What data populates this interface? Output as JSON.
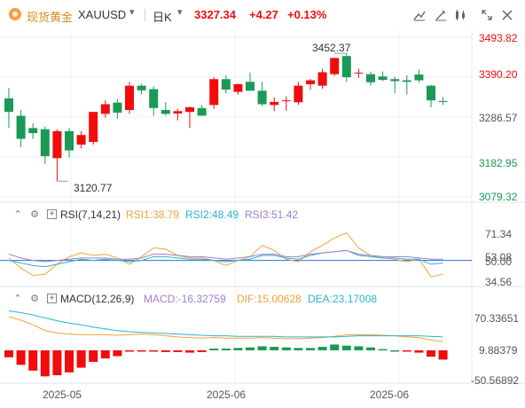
{
  "header": {
    "title": "现货黄金",
    "symbol": "XAUUSD",
    "period": "日K",
    "price": "3327.34",
    "change": "+4.27",
    "change_pct": "+0.13%",
    "icons": [
      "compare-icon",
      "drawing-icon",
      "candle-type-icon",
      "fullscreen-icon",
      "close-icon"
    ]
  },
  "colors": {
    "up": "#f20c0c",
    "down": "#1a9a56",
    "dif": "#f2a23a",
    "dea": "#2bb3c9",
    "rsi1": "#f2a23a",
    "rsi2": "#2bb3c9",
    "rsi3": "#9c7fcf"
  },
  "main_axis": [
    "3493.82",
    "3390.20",
    "3286.57",
    "3182.95",
    "3079.32"
  ],
  "annotations": {
    "high": "3452.37",
    "low": "3120.77"
  },
  "rsi": {
    "title": "RSI(7,14,21)",
    "rsi1": "RSI1:38.79",
    "rsi2": "RSI2:48.49",
    "rsi3": "RSI3:51.42",
    "axis": [
      "71.34",
      "53.08",
      "50.00",
      "34.56"
    ]
  },
  "macd": {
    "title": "MACD(12,26,9)",
    "macd": "MACD:-16.32759",
    "dif": "DIF:15.00628",
    "dea": "DEA:23.17008",
    "axis": [
      "70.33651",
      "9.88379",
      "-50.56892"
    ]
  },
  "x_axis": [
    "2025-05",
    "2025-06",
    "2025-06"
  ],
  "chart_data": [
    {
      "type": "candlestick",
      "title": "",
      "ylim": [
        3079.32,
        3493.82
      ],
      "candles": [
        {
          "o": 3335,
          "h": 3362,
          "l": 3258,
          "c": 3300
        },
        {
          "o": 3290,
          "h": 3305,
          "l": 3208,
          "c": 3230
        },
        {
          "o": 3258,
          "h": 3270,
          "l": 3230,
          "c": 3245
        },
        {
          "o": 3255,
          "h": 3262,
          "l": 3165,
          "c": 3185
        },
        {
          "o": 3180,
          "h": 3255,
          "l": 3120,
          "c": 3250
        },
        {
          "o": 3250,
          "h": 3258,
          "l": 3182,
          "c": 3200
        },
        {
          "o": 3215,
          "h": 3250,
          "l": 3205,
          "c": 3240
        },
        {
          "o": 3222,
          "h": 3300,
          "l": 3215,
          "c": 3300
        },
        {
          "o": 3295,
          "h": 3330,
          "l": 3285,
          "c": 3320
        },
        {
          "o": 3324,
          "h": 3333,
          "l": 3282,
          "c": 3298
        },
        {
          "o": 3305,
          "h": 3378,
          "l": 3295,
          "c": 3368
        },
        {
          "o": 3368,
          "h": 3373,
          "l": 3345,
          "c": 3356
        },
        {
          "o": 3359,
          "h": 3366,
          "l": 3290,
          "c": 3310
        },
        {
          "o": 3305,
          "h": 3325,
          "l": 3290,
          "c": 3295
        },
        {
          "o": 3296,
          "h": 3308,
          "l": 3278,
          "c": 3302
        },
        {
          "o": 3300,
          "h": 3314,
          "l": 3258,
          "c": 3312
        },
        {
          "o": 3310,
          "h": 3318,
          "l": 3290,
          "c": 3290
        },
        {
          "o": 3318,
          "h": 3390,
          "l": 3308,
          "c": 3385
        },
        {
          "o": 3385,
          "h": 3395,
          "l": 3348,
          "c": 3358
        },
        {
          "o": 3352,
          "h": 3374,
          "l": 3345,
          "c": 3372
        },
        {
          "o": 3378,
          "h": 3402,
          "l": 3355,
          "c": 3355
        },
        {
          "o": 3355,
          "h": 3378,
          "l": 3315,
          "c": 3320
        },
        {
          "o": 3318,
          "h": 3338,
          "l": 3302,
          "c": 3326
        },
        {
          "o": 3330,
          "h": 3340,
          "l": 3303,
          "c": 3330
        },
        {
          "o": 3325,
          "h": 3378,
          "l": 3318,
          "c": 3368
        },
        {
          "o": 3372,
          "h": 3386,
          "l": 3358,
          "c": 3382
        },
        {
          "o": 3368,
          "h": 3412,
          "l": 3360,
          "c": 3403
        },
        {
          "o": 3398,
          "h": 3441,
          "l": 3393,
          "c": 3440
        },
        {
          "o": 3445,
          "h": 3452,
          "l": 3378,
          "c": 3390
        },
        {
          "o": 3400,
          "h": 3412,
          "l": 3388,
          "c": 3402
        },
        {
          "o": 3398,
          "h": 3405,
          "l": 3368,
          "c": 3377
        },
        {
          "o": 3392,
          "h": 3405,
          "l": 3380,
          "c": 3383
        },
        {
          "o": 3385,
          "h": 3392,
          "l": 3348,
          "c": 3380
        },
        {
          "o": 3382,
          "h": 3395,
          "l": 3345,
          "c": 3378
        },
        {
          "o": 3397,
          "h": 3410,
          "l": 3376,
          "c": 3382
        },
        {
          "o": 3368,
          "h": 3370,
          "l": 3312,
          "c": 3330
        },
        {
          "o": 3328,
          "h": 3338,
          "l": 3318,
          "c": 3327
        }
      ]
    },
    {
      "type": "line",
      "title": "RSI(7,14,21)",
      "ylim": [
        30,
        78
      ],
      "series": [
        {
          "name": "RSI1",
          "values": [
            52,
            44,
            38,
            39,
            47,
            53,
            56,
            54,
            55,
            52,
            47,
            53,
            60,
            59,
            54,
            52,
            52,
            50,
            46,
            50,
            53,
            62,
            58,
            51,
            49,
            57,
            62,
            68,
            72,
            60,
            54,
            52,
            51,
            49,
            51,
            37,
            39
          ]
        },
        {
          "name": "RSI2",
          "values": [
            50,
            48,
            46,
            45,
            47,
            49,
            51,
            50,
            51,
            50,
            49,
            50,
            53,
            53,
            52,
            51,
            51,
            50,
            49,
            50,
            51,
            54,
            54,
            52,
            51,
            54,
            56,
            57,
            58,
            54,
            53,
            52,
            52,
            51,
            51,
            47,
            48
          ]
        },
        {
          "name": "RSI3",
          "values": [
            55,
            52,
            50,
            49,
            50,
            51,
            52,
            52,
            52,
            51,
            51,
            52,
            55,
            55,
            54,
            53,
            53,
            52,
            51,
            52,
            53,
            55,
            55,
            53,
            53,
            55,
            56,
            57,
            58,
            55,
            54,
            53,
            53,
            53,
            52,
            51,
            51
          ]
        }
      ]
    },
    {
      "type": "bar+line",
      "title": "MACD(12,26,9)",
      "ylim": [
        -50.56892,
        70.33651
      ],
      "series": [
        {
          "name": "MACD",
          "values": [
            -12,
            -25,
            -35,
            -45,
            -43,
            -38,
            -30,
            -20,
            -14,
            -10,
            -2,
            -1,
            -1,
            -3,
            -3,
            -4,
            -3,
            3,
            3,
            4,
            5,
            7,
            6,
            5,
            4,
            4,
            6,
            10,
            8,
            7,
            5,
            2,
            0,
            -2,
            -4,
            -11,
            -16
          ]
        },
        {
          "name": "DIF",
          "values": [
            58,
            52,
            44,
            34,
            30,
            28,
            27,
            27,
            27,
            26,
            27,
            28,
            27,
            25,
            23,
            22,
            21,
            22,
            21,
            21,
            21,
            22,
            21,
            20,
            20,
            21,
            22,
            24,
            27,
            27,
            27,
            26,
            25,
            23,
            22,
            18,
            15
          ]
        },
        {
          "name": "DEA",
          "values": [
            68,
            65,
            61,
            56,
            51,
            47,
            44,
            40,
            37,
            34,
            32,
            31,
            30,
            29,
            28,
            27,
            26,
            25,
            25,
            24,
            24,
            24,
            24,
            23,
            23,
            23,
            23,
            23,
            24,
            25,
            25,
            25,
            25,
            25,
            25,
            24,
            23
          ]
        }
      ]
    }
  ]
}
